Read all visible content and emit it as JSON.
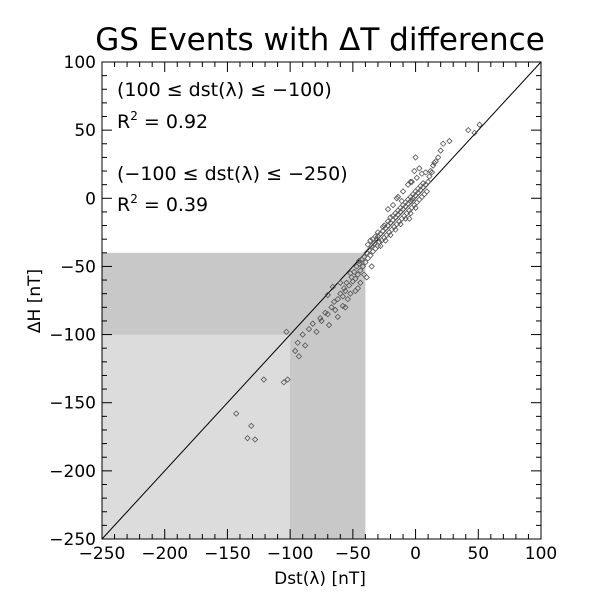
{
  "chart_data": {
    "type": "scatter",
    "title": "GS Events with ΔT difference",
    "xlabel": "Dst(λ) [nT]",
    "ylabel": "ΔH [nT]",
    "xlim": [
      -250,
      100
    ],
    "ylim": [
      -250,
      100
    ],
    "x_ticks": [
      -250,
      -200,
      -150,
      -100,
      -50,
      0,
      50,
      100
    ],
    "y_ticks": [
      -250,
      -200,
      -150,
      -100,
      -50,
      0,
      50,
      100
    ],
    "reference_line": {
      "from": [
        -250,
        -250
      ],
      "to": [
        100,
        100
      ]
    },
    "shaded_regions": [
      {
        "x": [
          -250,
          -40
        ],
        "y": [
          -250,
          -40
        ],
        "color": "#c8c8c8"
      },
      {
        "x": [
          -250,
          -100
        ],
        "y": [
          -250,
          -100
        ],
        "color": "#dcdcdc"
      }
    ],
    "annotations": [
      {
        "line1": "(100 ≤ dst(λ) ≤ −100)",
        "line2_prefix": "R",
        "line2_sup": "2",
        "line2_rest": " = 0.92"
      },
      {
        "line1": "(−100 ≤ dst(λ) ≤ −250)",
        "line2_prefix": "R",
        "line2_sup": "2",
        "line2_rest": " = 0.39"
      }
    ],
    "marker": "diamond",
    "marker_color": "#555555",
    "points": [
      [
        -143,
        -158
      ],
      [
        -134,
        -176
      ],
      [
        -131,
        -167
      ],
      [
        -128,
        -177
      ],
      [
        -121,
        -133
      ],
      [
        -105,
        -135
      ],
      [
        -103,
        -98
      ],
      [
        -102,
        -133
      ],
      [
        -96,
        -112
      ],
      [
        -94,
        -106
      ],
      [
        -93,
        -116
      ],
      [
        -90,
        -100
      ],
      [
        -88,
        -108
      ],
      [
        -85,
        -96
      ],
      [
        -82,
        -92
      ],
      [
        -79,
        -98
      ],
      [
        -76,
        -88
      ],
      [
        -75,
        -90
      ],
      [
        -72,
        -84
      ],
      [
        -70,
        -85
      ],
      [
        -69,
        -93
      ],
      [
        -67,
        -80
      ],
      [
        -65,
        -76
      ],
      [
        -64,
        -82
      ],
      [
        -62,
        -74
      ],
      [
        -60,
        -70
      ],
      [
        -58,
        -72
      ],
      [
        -57,
        -66
      ],
      [
        -56,
        -80
      ],
      [
        -55,
        -62
      ],
      [
        -53,
        -64
      ],
      [
        -52,
        -70
      ],
      [
        -51,
        -58
      ],
      [
        -50,
        -61
      ],
      [
        -49,
        -54
      ],
      [
        -48,
        -59
      ],
      [
        -47,
        -50
      ],
      [
        -46,
        -56
      ],
      [
        -45,
        -48
      ],
      [
        -44,
        -53
      ],
      [
        -43,
        -45
      ],
      [
        -42,
        -50
      ],
      [
        -41,
        -43
      ],
      [
        -40,
        -47
      ],
      [
        -39,
        -40
      ],
      [
        -38,
        -44
      ],
      [
        -37,
        -38
      ],
      [
        -36,
        -42
      ],
      [
        -35,
        -35
      ],
      [
        -34,
        -39
      ],
      [
        -33,
        -33
      ],
      [
        -32,
        -37
      ],
      [
        -31,
        -30
      ],
      [
        -30,
        -35
      ],
      [
        -30,
        -28
      ],
      [
        -29,
        -32
      ],
      [
        -28,
        -26
      ],
      [
        -27,
        -31
      ],
      [
        -26,
        -24
      ],
      [
        -25,
        -29
      ],
      [
        -24,
        -22
      ],
      [
        -23,
        -27
      ],
      [
        -22,
        -20
      ],
      [
        -21,
        -25
      ],
      [
        -20,
        -18
      ],
      [
        -19,
        -23
      ],
      [
        -18,
        -16
      ],
      [
        -17,
        -21
      ],
      [
        -16,
        -14
      ],
      [
        -15,
        -19
      ],
      [
        -14,
        -12
      ],
      [
        -13,
        -17
      ],
      [
        -12,
        -10
      ],
      [
        -11,
        -15
      ],
      [
        -10,
        -8
      ],
      [
        -9,
        -13
      ],
      [
        -8,
        -6
      ],
      [
        -7,
        -11
      ],
      [
        -6,
        -4
      ],
      [
        -5,
        -9
      ],
      [
        -4,
        -2
      ],
      [
        -3,
        -7
      ],
      [
        -2,
        0
      ],
      [
        -1,
        -5
      ],
      [
        0,
        2
      ],
      [
        1,
        -3
      ],
      [
        2,
        4
      ],
      [
        3,
        -1
      ],
      [
        4,
        6
      ],
      [
        5,
        1
      ],
      [
        6,
        8
      ],
      [
        7,
        3
      ],
      [
        8,
        10
      ],
      [
        9,
        5
      ],
      [
        10,
        12
      ],
      [
        -25,
        -20
      ],
      [
        -22,
        -17
      ],
      [
        -18,
        -13
      ],
      [
        -14,
        -9
      ],
      [
        -10,
        -5
      ],
      [
        -6,
        -1
      ],
      [
        -2,
        3
      ],
      [
        2,
        7
      ],
      [
        6,
        11
      ],
      [
        -30,
        -25
      ],
      [
        -26,
        -21
      ],
      [
        -34,
        -30
      ],
      [
        -38,
        -34
      ],
      [
        -20,
        -14
      ],
      [
        -16,
        -11
      ],
      [
        -12,
        -7
      ],
      [
        -8,
        -3
      ],
      [
        -4,
        1
      ],
      [
        0,
        5
      ],
      [
        4,
        9
      ],
      [
        -28,
        -35
      ],
      [
        -24,
        -31
      ],
      [
        -20,
        -27
      ],
      [
        -16,
        -23
      ],
      [
        -12,
        -19
      ],
      [
        -8,
        -15
      ],
      [
        -4,
        -11
      ],
      [
        0,
        -7
      ],
      [
        -32,
        -28
      ],
      [
        -36,
        -31
      ],
      [
        -6,
        10
      ],
      [
        -10,
        5
      ],
      [
        -14,
        1
      ],
      [
        -3,
        12
      ],
      [
        1,
        15
      ],
      [
        5,
        18
      ],
      [
        -18,
        -5
      ],
      [
        -22,
        -8
      ],
      [
        -2,
        -2
      ],
      [
        -5,
        -15
      ],
      [
        12,
        20
      ],
      [
        14,
        24
      ],
      [
        16,
        27
      ],
      [
        18,
        30
      ],
      [
        11,
        16
      ],
      [
        13,
        19
      ],
      [
        -1,
        20
      ],
      [
        0,
        30
      ],
      [
        20,
        35
      ],
      [
        22,
        40
      ],
      [
        27,
        42
      ],
      [
        42,
        50
      ],
      [
        51,
        54
      ],
      [
        47,
        48
      ],
      [
        -4,
        12
      ],
      [
        3,
        22
      ],
      [
        8,
        19
      ],
      [
        15,
        26
      ],
      [
        -15,
        0
      ],
      [
        -11,
        -2
      ],
      [
        -58,
        -79
      ],
      [
        -54,
        -74
      ],
      [
        -46,
        -66
      ],
      [
        -41,
        -56
      ],
      [
        -48,
        -68
      ],
      [
        -62,
        -87
      ],
      [
        -44,
        -62
      ],
      [
        -39,
        -58
      ],
      [
        -35,
        -50
      ],
      [
        -56,
        -68
      ],
      [
        -70,
        -71
      ],
      [
        -66,
        -65
      ],
      [
        -45,
        -46
      ],
      [
        -52,
        -55
      ],
      [
        -60,
        -62
      ]
    ]
  }
}
